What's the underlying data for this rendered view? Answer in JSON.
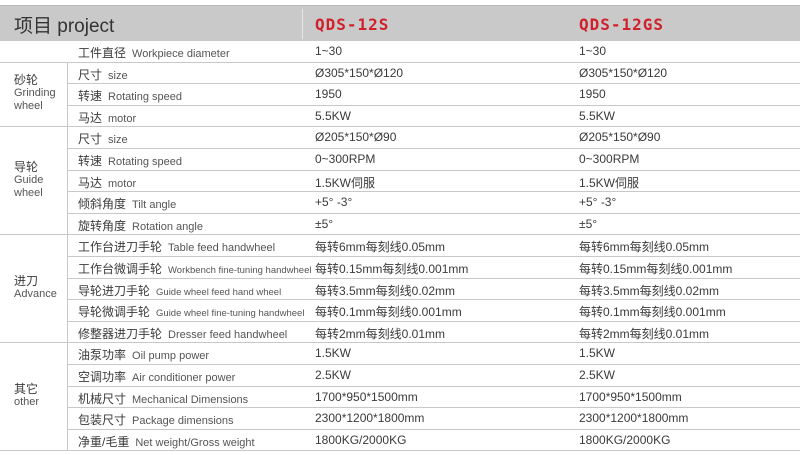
{
  "header": {
    "project": "项目 project",
    "model1": "QDS-12S",
    "model2": "QDS-12GS"
  },
  "categories": [
    {
      "zh": "砂轮",
      "en": [
        "Grinding",
        "wheel"
      ]
    },
    {
      "zh": "导轮",
      "en": [
        "Guide",
        "wheel"
      ]
    },
    {
      "zh": "进刀",
      "en": [
        "Advance"
      ]
    },
    {
      "zh": "其它",
      "en": [
        "other"
      ]
    }
  ],
  "rows": [
    {
      "zh": "工件直径",
      "en": "Workpiece diameter",
      "v1": "1~30",
      "v2": "1~30"
    },
    {
      "zh": "尺寸",
      "en": "size",
      "v1": "Ø305*150*Ø120",
      "v2": "Ø305*150*Ø120"
    },
    {
      "zh": "转速",
      "en": "Rotating speed",
      "v1": "1950",
      "v2": "1950"
    },
    {
      "zh": "马达",
      "en": "motor",
      "v1": "5.5KW",
      "v2": "5.5KW"
    },
    {
      "zh": "尺寸",
      "en": "size",
      "v1": "Ø205*150*Ø90",
      "v2": "Ø205*150*Ø90"
    },
    {
      "zh": "转速",
      "en": "Rotating speed",
      "v1": "0~300RPM",
      "v2": "0~300RPM"
    },
    {
      "zh": "马达",
      "en": "motor",
      "v1": "1.5KW伺服",
      "v2": "1.5KW伺服"
    },
    {
      "zh": "倾斜角度",
      "en": "Tilt angle",
      "v1": "+5° -3°",
      "v2": "+5° -3°"
    },
    {
      "zh": "旋转角度",
      "en": "Rotation angle",
      "v1": "±5°",
      "v2": "±5°"
    },
    {
      "zh": "工作台进刀手轮",
      "en": "Table feed handwheel",
      "v1": "每转6mm每刻线0.05mm",
      "v2": "每转6mm每刻线0.05mm"
    },
    {
      "zh": "工作台微调手轮",
      "en": "Workbench fine-tuning handwheel",
      "v1": "每转0.15mm每刻线0.001mm",
      "v2": "每转0.15mm每刻线0.001mm"
    },
    {
      "zh": "导轮进刀手轮",
      "en": "Guide wheel feed hand wheel",
      "v1": "每转3.5mm每刻线0.02mm",
      "v2": "每转3.5mm每刻线0.02mm"
    },
    {
      "zh": "导轮微调手轮",
      "en": "Guide wheel fine-tuning handwheel",
      "v1": "每转0.1mm每刻线0.001mm",
      "v2": "每转0.1mm每刻线0.001mm"
    },
    {
      "zh": "修整器进刀手轮",
      "en": "Dresser feed handwheel",
      "v1": "每转2mm每刻线0.01mm",
      "v2": "每转2mm每刻线0.01mm"
    },
    {
      "zh": "油泵功率",
      "en": "Oil pump power",
      "v1": "1.5KW",
      "v2": "1.5KW"
    },
    {
      "zh": "空调功率",
      "en": "Air conditioner power",
      "v1": "2.5KW",
      "v2": "2.5KW"
    },
    {
      "zh": "机械尺寸",
      "en": "Mechanical Dimensions",
      "v1": "1700*950*1500mm",
      "v2": "1700*950*1500mm"
    },
    {
      "zh": "包装尺寸",
      "en": "Package dimensions",
      "v1": "2300*1200*1800mm",
      "v2": "2300*1200*1800mm"
    },
    {
      "zh": "净重/毛重",
      "en": "Net weight/Gross weight",
      "v1": "1800KG/2000KG",
      "v2": "1800KG/2000KG"
    }
  ]
}
